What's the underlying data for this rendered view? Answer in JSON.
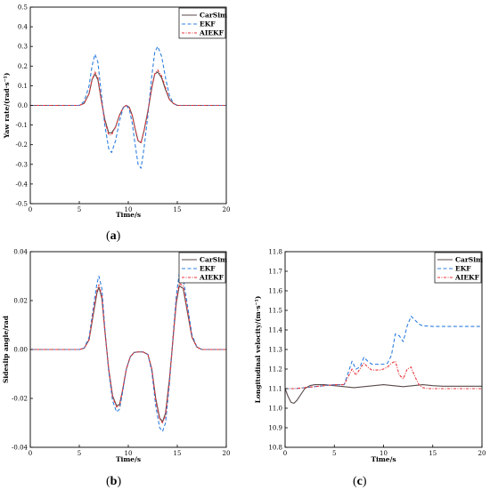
{
  "series_styles": [
    {
      "key": "carsim",
      "name": "CarSim",
      "color": "#5a4a4a",
      "dash": ""
    },
    {
      "key": "ekf",
      "name": "EKF",
      "color": "#2f7fe0",
      "dash": "4,2.5"
    },
    {
      "key": "aiekf",
      "name": "AIEKF",
      "color": "#e8333a",
      "dash": "3,1.5,1,1.5"
    }
  ],
  "panel_labels": {
    "a": {
      "open": "(",
      "letter": "a",
      "close": ")"
    },
    "b": {
      "open": "(",
      "letter": "b",
      "close": ")"
    },
    "c": {
      "open": "(",
      "letter": "c",
      "close": ")"
    }
  },
  "chart_data": [
    {
      "id": "a",
      "type": "line",
      "xlabel": "Time/s",
      "ylabel": "Yaw rate/(rad·s⁻¹)",
      "xlim": [
        0,
        20
      ],
      "ylim": [
        -0.5,
        0.5
      ],
      "xticks": [
        0,
        5,
        10,
        15,
        20
      ],
      "xticklabels": [
        "0",
        "5",
        "10",
        "15",
        "20"
      ],
      "yticks": [
        -0.5,
        -0.4,
        -0.3,
        -0.2,
        -0.1,
        0.0,
        0.1,
        0.2,
        0.3,
        0.4,
        0.5
      ],
      "yticklabels": [
        "-0.5",
        "-0.4",
        "-0.3",
        "-0.2",
        "-0.1",
        "0.0",
        "0.1",
        "0.2",
        "0.3",
        "0.4",
        "0.5"
      ],
      "legend": "top-right",
      "series": [
        {
          "name": "CarSim",
          "x": [
            0,
            5,
            5.5,
            6,
            6.3,
            6.6,
            6.9,
            7.2,
            7.6,
            8,
            8.3,
            8.7,
            9.1,
            9.5,
            9.8,
            10.1,
            10.4,
            10.7,
            11,
            11.3,
            11.6,
            12,
            12.4,
            12.7,
            13,
            13.4,
            13.8,
            14.2,
            14.6,
            15,
            15.5,
            20
          ],
          "y": [
            0,
            0,
            0.01,
            0.06,
            0.13,
            0.16,
            0.13,
            0.04,
            -0.07,
            -0.14,
            -0.14,
            -0.11,
            -0.05,
            -0.01,
            0,
            -0.01,
            -0.05,
            -0.12,
            -0.18,
            -0.19,
            -0.13,
            -0.03,
            0.09,
            0.16,
            0.17,
            0.14,
            0.08,
            0.03,
            0.01,
            0,
            0,
            0
          ]
        },
        {
          "name": "EKF",
          "x": [
            0,
            5,
            5.5,
            6,
            6.3,
            6.6,
            6.9,
            7.2,
            7.6,
            8,
            8.3,
            8.7,
            9.1,
            9.5,
            9.8,
            10.1,
            10.4,
            10.7,
            11,
            11.3,
            11.6,
            12,
            12.4,
            12.7,
            13,
            13.4,
            13.8,
            14.2,
            14.6,
            15,
            15.5,
            20
          ],
          "y": [
            0,
            0,
            0.02,
            0.1,
            0.2,
            0.26,
            0.22,
            0.08,
            -0.1,
            -0.22,
            -0.24,
            -0.18,
            -0.08,
            -0.01,
            0,
            -0.02,
            -0.09,
            -0.2,
            -0.3,
            -0.32,
            -0.22,
            -0.05,
            0.15,
            0.27,
            0.3,
            0.25,
            0.14,
            0.05,
            0.01,
            0,
            0,
            0
          ]
        },
        {
          "name": "AIEKF",
          "x": [
            0,
            5,
            5.5,
            6,
            6.3,
            6.6,
            6.9,
            7.2,
            7.6,
            8,
            8.3,
            8.7,
            9.1,
            9.5,
            9.8,
            10.1,
            10.4,
            10.7,
            11,
            11.3,
            11.6,
            12,
            12.4,
            12.7,
            13,
            13.4,
            13.8,
            14.2,
            14.6,
            15,
            15.5,
            20
          ],
          "y": [
            0,
            0,
            0.01,
            0.06,
            0.13,
            0.17,
            0.14,
            0.04,
            -0.08,
            -0.15,
            -0.15,
            -0.11,
            -0.05,
            -0.01,
            0,
            -0.01,
            -0.05,
            -0.12,
            -0.18,
            -0.19,
            -0.13,
            -0.03,
            0.09,
            0.16,
            0.18,
            0.15,
            0.09,
            0.03,
            0.01,
            0,
            0,
            0
          ]
        }
      ]
    },
    {
      "id": "b",
      "type": "line",
      "xlabel": "Time/s",
      "ylabel": "Sideslip angle/rad",
      "xlim": [
        0,
        20
      ],
      "ylim": [
        -0.04,
        0.04
      ],
      "xticks": [
        0,
        5,
        10,
        15,
        20
      ],
      "xticklabels": [
        "0",
        "5",
        "10",
        "15",
        "20"
      ],
      "yticks": [
        -0.04,
        -0.02,
        0.0,
        0.02,
        0.04
      ],
      "yticklabels": [
        "-0.04",
        "-0.02",
        "0.00",
        "0.02",
        "0.04"
      ],
      "legend": "top-right",
      "series": [
        {
          "name": "CarSim",
          "x": [
            0,
            5,
            5.5,
            6,
            6.5,
            6.8,
            7,
            7.3,
            7.6,
            8,
            8.4,
            8.8,
            9.1,
            9.4,
            9.8,
            10.2,
            10.6,
            11,
            11.5,
            12,
            12.4,
            12.8,
            13.2,
            13.5,
            13.8,
            14.2,
            14.6,
            14.9,
            15.2,
            15.6,
            16,
            16.5,
            17,
            17.5,
            20
          ],
          "y": [
            0,
            0,
            0.0005,
            0.004,
            0.016,
            0.023,
            0.0255,
            0.021,
            0.008,
            -0.008,
            -0.019,
            -0.023,
            -0.0225,
            -0.017,
            -0.008,
            -0.003,
            -0.0012,
            -0.001,
            -0.001,
            -0.002,
            -0.008,
            -0.02,
            -0.028,
            -0.0295,
            -0.026,
            -0.012,
            0.006,
            0.019,
            0.026,
            0.025,
            0.016,
            0.005,
            0.001,
            0,
            0
          ]
        },
        {
          "name": "EKF",
          "x": [
            0,
            5,
            5.5,
            6,
            6.5,
            6.8,
            7,
            7.3,
            7.6,
            8,
            8.4,
            8.8,
            9.1,
            9.4,
            9.8,
            10.2,
            10.6,
            11,
            11.5,
            12,
            12.4,
            12.8,
            13.2,
            13.5,
            13.8,
            14.2,
            14.6,
            14.9,
            15.2,
            15.6,
            16,
            16.5,
            17,
            17.5,
            20
          ],
          "y": [
            0,
            0,
            0.0006,
            0.005,
            0.019,
            0.027,
            0.03,
            0.025,
            0.009,
            -0.009,
            -0.021,
            -0.0255,
            -0.0245,
            -0.018,
            -0.008,
            -0.003,
            -0.0012,
            -0.001,
            -0.001,
            -0.002,
            -0.009,
            -0.023,
            -0.032,
            -0.0335,
            -0.03,
            -0.014,
            0.007,
            0.022,
            0.031,
            0.029,
            0.019,
            0.006,
            0.001,
            0,
            0
          ]
        },
        {
          "name": "AIEKF",
          "x": [
            0,
            5,
            5.5,
            6,
            6.5,
            6.8,
            7,
            7.3,
            7.6,
            8,
            8.4,
            8.8,
            9.1,
            9.4,
            9.8,
            10.2,
            10.6,
            11,
            11.5,
            12,
            12.4,
            12.8,
            13.2,
            13.5,
            13.8,
            14.2,
            14.6,
            14.9,
            15.2,
            15.6,
            16,
            16.5,
            17,
            17.5,
            20
          ],
          "y": [
            0,
            0,
            0.0005,
            0.004,
            0.017,
            0.024,
            0.0265,
            0.022,
            0.008,
            -0.008,
            -0.0195,
            -0.0235,
            -0.023,
            -0.017,
            -0.008,
            -0.003,
            -0.0012,
            -0.001,
            -0.001,
            -0.002,
            -0.008,
            -0.021,
            -0.0285,
            -0.03,
            -0.027,
            -0.013,
            0.006,
            0.02,
            0.027,
            0.026,
            0.017,
            0.005,
            0.001,
            0,
            0
          ]
        }
      ]
    },
    {
      "id": "c",
      "type": "line",
      "xlabel": "Time/s",
      "ylabel": "Longitudinal velocity/(m·s⁻¹)",
      "xlim": [
        0,
        20
      ],
      "ylim": [
        10.8,
        11.8
      ],
      "xticks": [
        0,
        5,
        10,
        15,
        20
      ],
      "xticklabels": [
        "0",
        "5",
        "10",
        "15",
        "20"
      ],
      "yticks": [
        10.8,
        10.9,
        11.0,
        11.1,
        11.2,
        11.3,
        11.4,
        11.5,
        11.6,
        11.7,
        11.8
      ],
      "yticklabels": [
        "10.8",
        "10.9",
        "11.0",
        "11.1",
        "11.2",
        "11.3",
        "11.4",
        "11.5",
        "11.6",
        "11.7",
        "11.8"
      ],
      "legend": "top-right",
      "series": [
        {
          "name": "CarSim",
          "x": [
            0,
            0.3,
            0.6,
            0.9,
            1.2,
            1.6,
            2,
            2.5,
            3,
            4,
            5,
            6,
            7,
            8,
            9,
            10,
            11,
            12,
            13,
            14,
            15,
            16,
            18,
            20
          ],
          "y": [
            11.1,
            11.06,
            11.03,
            11.025,
            11.04,
            11.07,
            11.1,
            11.115,
            11.12,
            11.12,
            11.115,
            11.11,
            11.105,
            11.11,
            11.115,
            11.12,
            11.115,
            11.11,
            11.115,
            11.12,
            11.115,
            11.112,
            11.112,
            11.112
          ]
        },
        {
          "name": "EKF",
          "x": [
            0,
            1,
            2,
            3,
            4,
            5,
            6,
            6.4,
            6.8,
            7.2,
            7.6,
            8,
            8.4,
            8.8,
            9.2,
            9.6,
            10,
            10.4,
            10.8,
            11.2,
            11.6,
            12,
            12.4,
            12.8,
            13.2,
            13.6,
            14,
            14.5,
            15,
            16,
            18,
            20
          ],
          "y": [
            11.1,
            11.1,
            11.105,
            11.11,
            11.115,
            11.12,
            11.12,
            11.18,
            11.24,
            11.2,
            11.21,
            11.26,
            11.24,
            11.225,
            11.225,
            11.225,
            11.225,
            11.23,
            11.27,
            11.38,
            11.37,
            11.34,
            11.42,
            11.47,
            11.45,
            11.43,
            11.42,
            11.42,
            11.418,
            11.418,
            11.418,
            11.418
          ]
        },
        {
          "name": "AIEKF",
          "x": [
            0,
            1,
            2,
            3,
            4,
            5,
            6,
            6.4,
            6.8,
            7.2,
            7.6,
            8,
            8.4,
            8.8,
            9.2,
            9.6,
            10,
            10.4,
            10.8,
            11.2,
            11.6,
            12,
            12.4,
            12.8,
            13.2,
            13.6,
            14,
            14.5,
            15,
            16,
            18,
            20
          ],
          "y": [
            11.1,
            11.1,
            11.105,
            11.11,
            11.115,
            11.12,
            11.12,
            11.16,
            11.2,
            11.17,
            11.2,
            11.23,
            11.21,
            11.195,
            11.195,
            11.195,
            11.2,
            11.21,
            11.23,
            11.24,
            11.17,
            11.15,
            11.2,
            11.21,
            11.16,
            11.12,
            11.105,
            11.1,
            11.1,
            11.1,
            11.1,
            11.1
          ]
        }
      ]
    }
  ]
}
